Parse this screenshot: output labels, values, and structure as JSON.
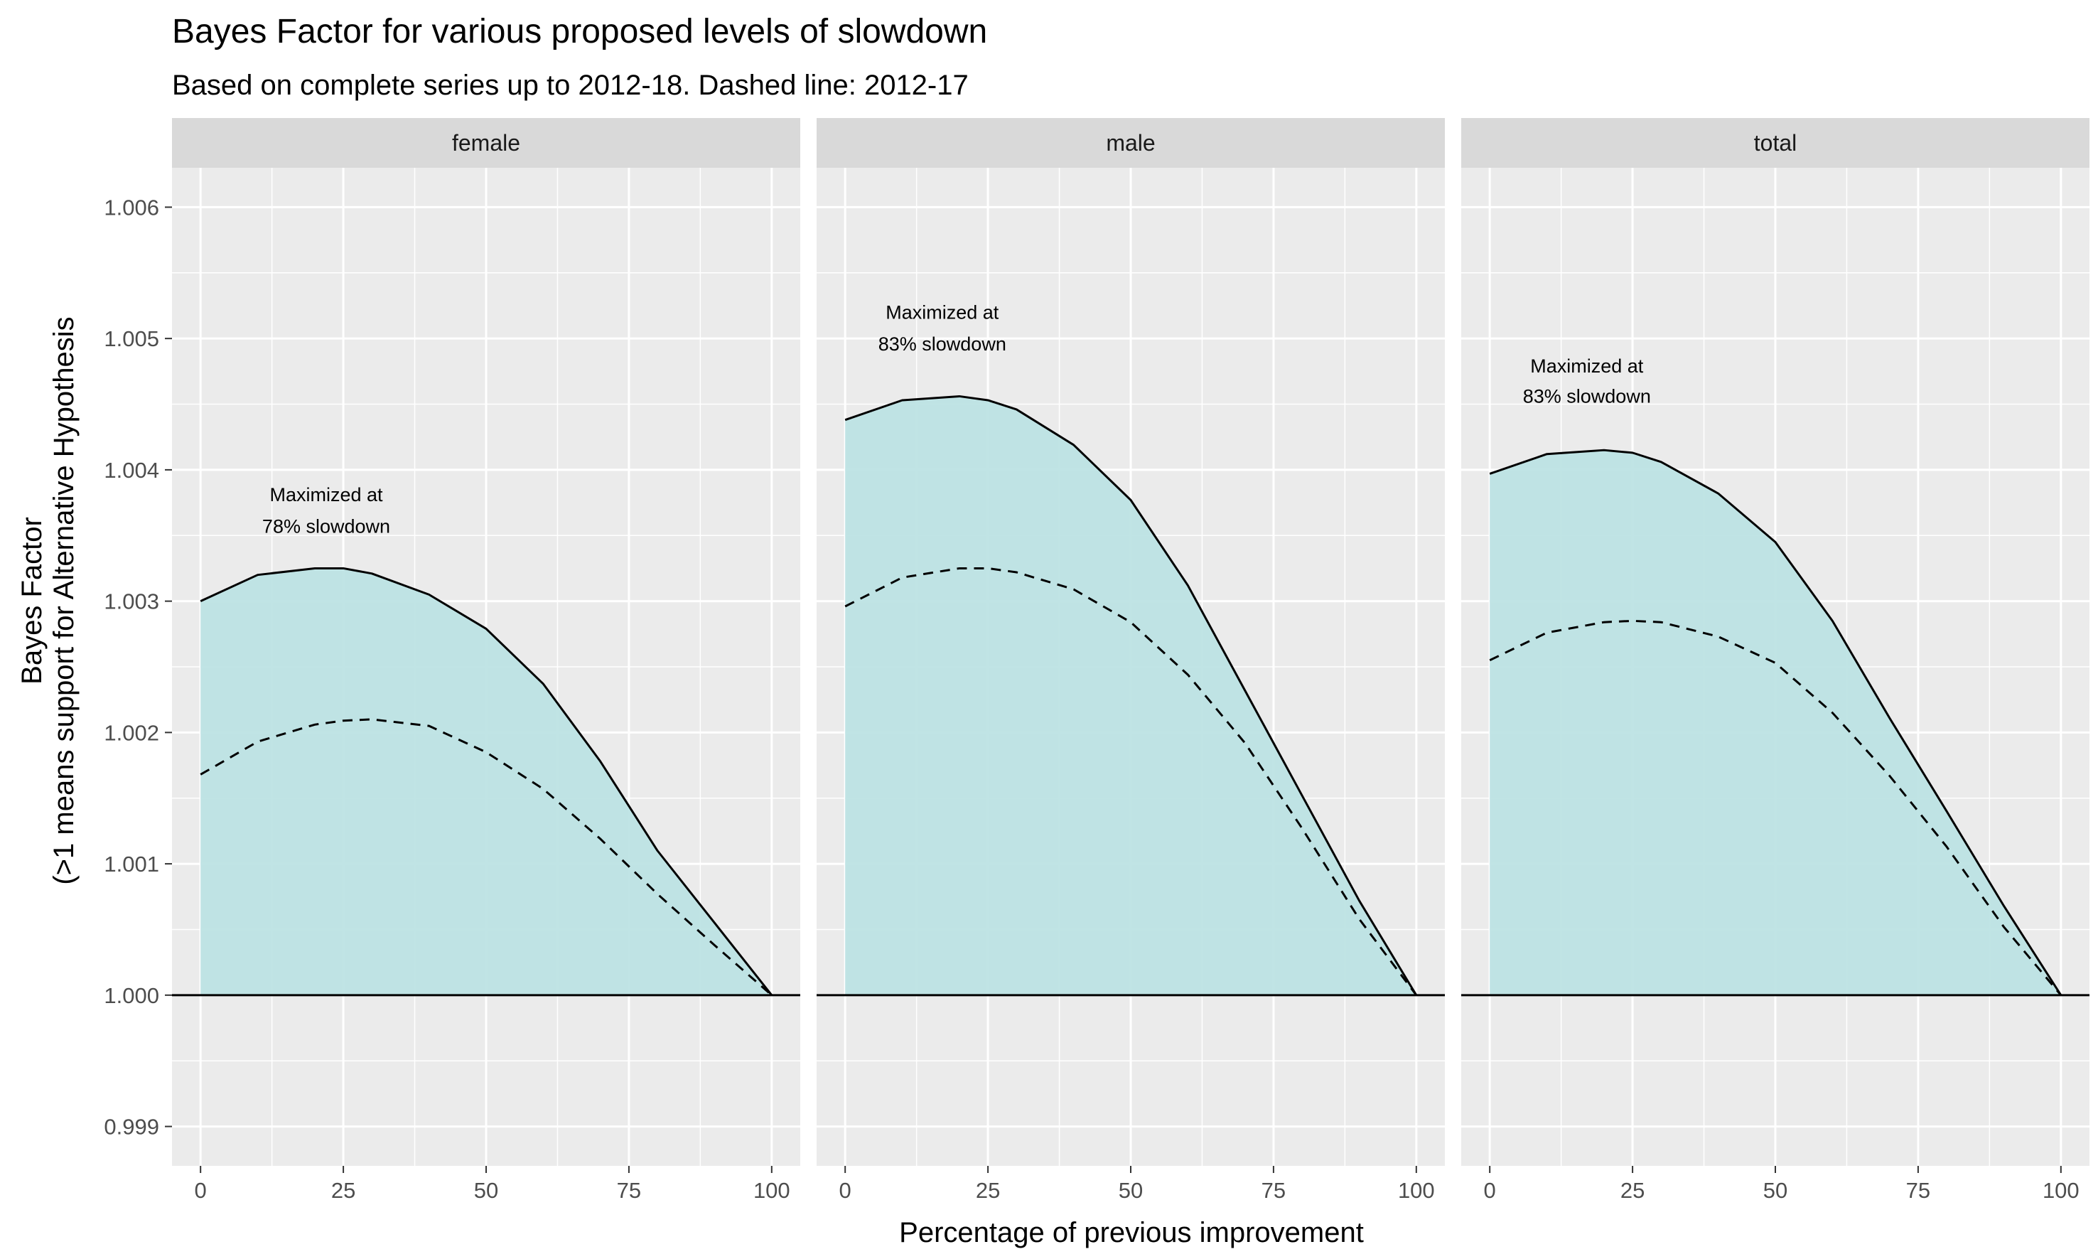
{
  "title": "Bayes Factor for various proposed levels of slowdown",
  "subtitle": "Based on complete series up to 2012-18. Dashed line: 2012-17",
  "chart_data": {
    "type": "area",
    "facets": [
      "female",
      "male",
      "total"
    ],
    "xlabel": "Percentage of previous improvement",
    "ylabel_lines": [
      "Bayes Factor",
      "(>1 means support for Alternative Hypothesis"
    ],
    "xlim": [
      -5,
      105
    ],
    "ylim": [
      0.9987,
      1.0063
    ],
    "x_ticks": [
      0,
      25,
      50,
      75,
      100
    ],
    "y_ticks": [
      0.999,
      1.0,
      1.001,
      1.002,
      1.003,
      1.004,
      1.005,
      1.006
    ],
    "y_tick_labels": [
      "0.999",
      "1.000",
      "1.001",
      "1.002",
      "1.003",
      "1.004",
      "1.005",
      "1.006"
    ],
    "reference_line_y": 1.0,
    "fill_color": "#bde3e4",
    "panel_bg": "#ebebeb",
    "strip_bg": "#d9d9d9",
    "grid_color": "#ffffff",
    "series": [
      {
        "facet": "female",
        "x": [
          0,
          10,
          20,
          25,
          30,
          40,
          50,
          60,
          70,
          80,
          90,
          100
        ],
        "solid": [
          1.003,
          1.0032,
          1.00325,
          1.00325,
          1.00321,
          1.00305,
          1.00279,
          1.00237,
          1.00178,
          1.0011,
          1.00055,
          1.0
        ],
        "dashed": [
          1.00168,
          1.00193,
          1.00206,
          1.00209,
          1.0021,
          1.00205,
          1.00185,
          1.00157,
          1.00119,
          1.00077,
          1.00038,
          1.0
        ],
        "annotation": [
          "Maximized at",
          "78% slowdown"
        ],
        "annotation_x": 22,
        "annotation_y": [
          1.00376,
          1.00352
        ]
      },
      {
        "facet": "male",
        "x": [
          0,
          10,
          20,
          25,
          30,
          40,
          50,
          60,
          70,
          80,
          90,
          100
        ],
        "solid": [
          1.00438,
          1.00453,
          1.00456,
          1.00453,
          1.00446,
          1.00419,
          1.00377,
          1.00312,
          1.00232,
          1.00152,
          1.00072,
          1.0
        ],
        "dashed": [
          1.00296,
          1.00318,
          1.00325,
          1.00325,
          1.00322,
          1.00309,
          1.00284,
          1.00244,
          1.00192,
          1.00127,
          1.00058,
          1.0
        ],
        "annotation": [
          "Maximized at",
          "83% slowdown"
        ],
        "annotation_x": 17,
        "annotation_y": [
          1.00515,
          1.00491
        ]
      },
      {
        "facet": "total",
        "x": [
          0,
          10,
          20,
          25,
          30,
          40,
          50,
          60,
          70,
          80,
          90,
          100
        ],
        "solid": [
          1.00397,
          1.00412,
          1.00415,
          1.00413,
          1.00406,
          1.00382,
          1.00345,
          1.00285,
          1.00211,
          1.0014,
          1.00068,
          1.0
        ],
        "dashed": [
          1.00255,
          1.00276,
          1.00284,
          1.00285,
          1.00284,
          1.00273,
          1.00253,
          1.00215,
          1.00167,
          1.00113,
          1.00052,
          1.0
        ],
        "annotation": [
          "Maximized at",
          "83% slowdown"
        ],
        "annotation_x": 17,
        "annotation_y": [
          1.00474,
          1.00451
        ]
      }
    ]
  }
}
